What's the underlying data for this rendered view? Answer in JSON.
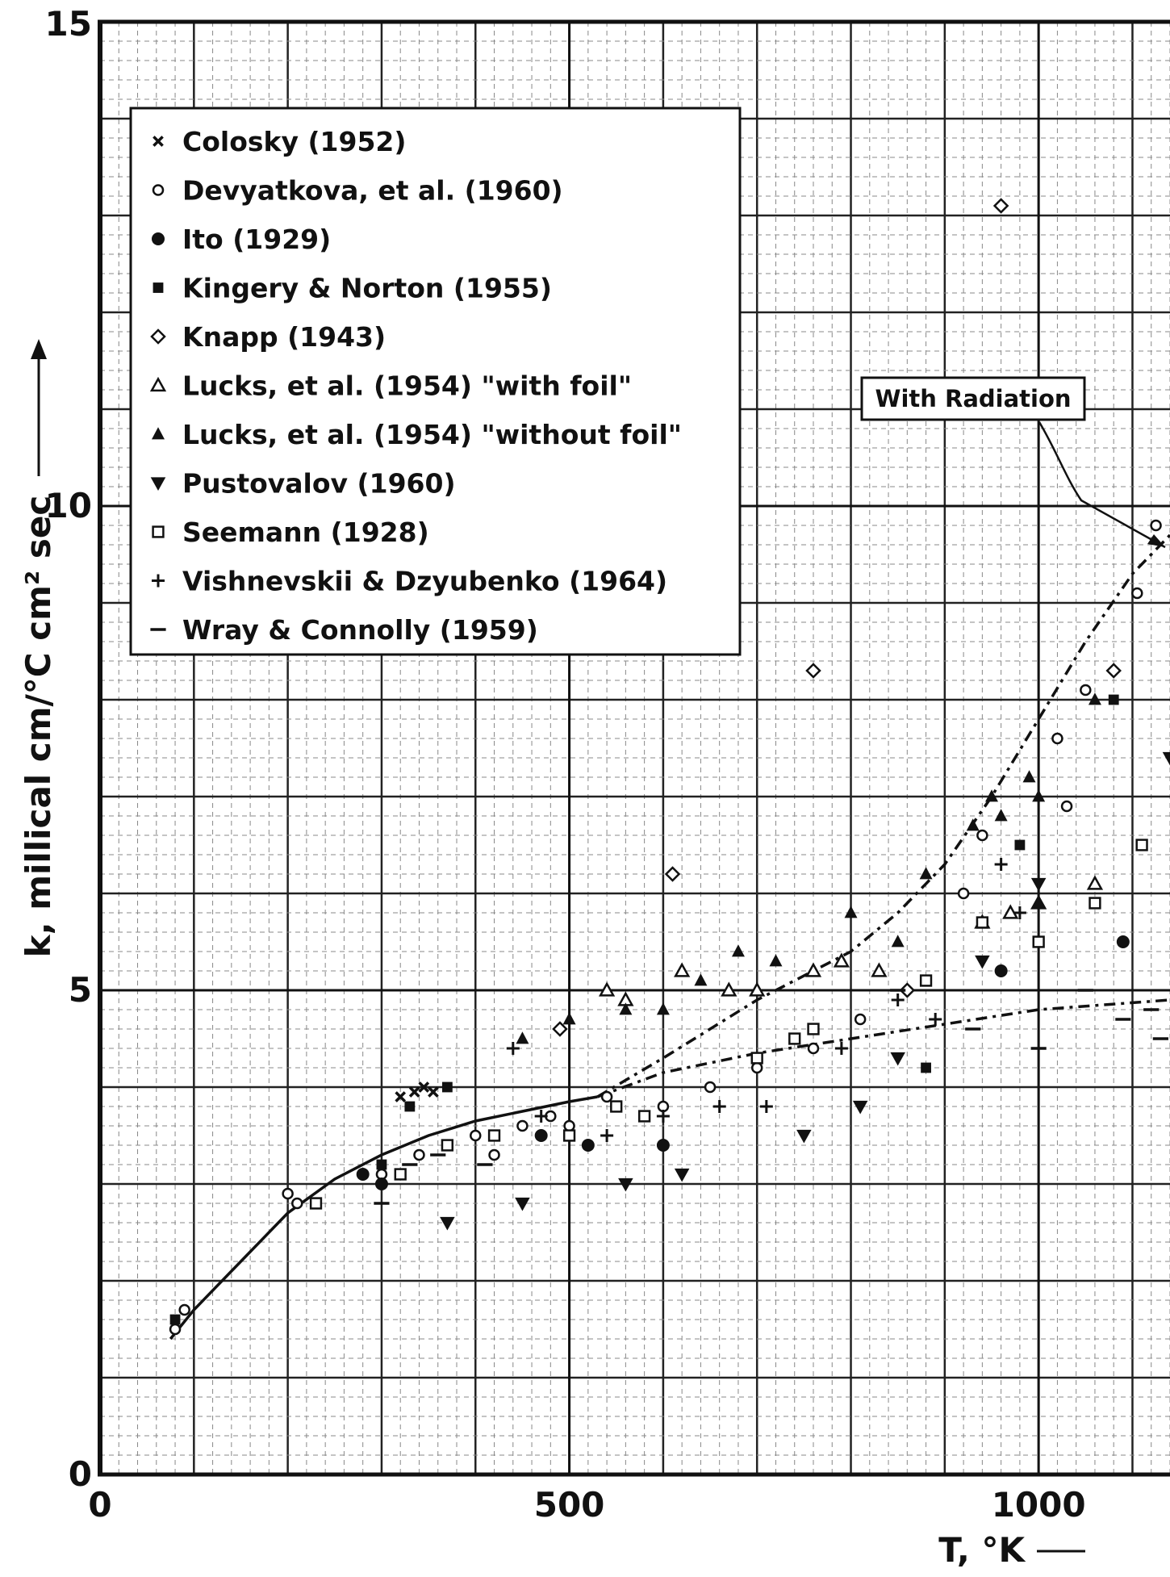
{
  "chart_data": {
    "type": "scatter",
    "xlabel": "T, °K",
    "ylabel": "k, millical cm/°C cm² sec",
    "xlim": [
      0,
      1140
    ],
    "ylim": [
      0,
      15
    ],
    "xticks": [
      0,
      500,
      1000
    ],
    "yticks": [
      0,
      5,
      10,
      15
    ],
    "grid": true,
    "legend": "upper-left",
    "annotation": "With Radiation",
    "series": [
      {
        "name": "Colosky (1952)",
        "marker": "x",
        "color": "#111",
        "x": [
          320,
          335,
          345,
          355
        ],
        "values": [
          3.9,
          3.95,
          4.0,
          3.95
        ]
      },
      {
        "name": "Devyatkova, et al. (1960)",
        "marker": "o",
        "color": "#111",
        "x": [
          80,
          90,
          200,
          210,
          300,
          340,
          370,
          400,
          420,
          450,
          480,
          500,
          540,
          600,
          650,
          700,
          760,
          810,
          920,
          940,
          1020,
          1050,
          1105,
          1125,
          1030
        ],
        "values": [
          1.5,
          1.7,
          2.9,
          2.8,
          3.1,
          3.3,
          3.4,
          3.5,
          3.3,
          3.6,
          3.7,
          3.6,
          3.9,
          3.8,
          4.0,
          4.2,
          4.4,
          4.7,
          6.0,
          6.6,
          7.6,
          8.1,
          9.1,
          9.8,
          6.9
        ]
      },
      {
        "name": "Ito (1929)",
        "marker": "filled-circle",
        "color": "#111",
        "x": [
          280,
          300,
          470,
          520,
          600,
          960,
          1090
        ],
        "values": [
          3.1,
          3.0,
          3.5,
          3.4,
          3.4,
          5.2,
          5.5
        ]
      },
      {
        "name": "Kingery & Norton (1955)",
        "marker": "filled-square",
        "color": "#111",
        "x": [
          80,
          300,
          330,
          370,
          880,
          980,
          1080
        ],
        "values": [
          1.6,
          3.2,
          3.8,
          4.0,
          4.2,
          6.5,
          8.0
        ]
      },
      {
        "name": "Knapp (1943)",
        "marker": "diamond",
        "color": "#111",
        "x": [
          490,
          610,
          760,
          960,
          860,
          1080
        ],
        "values": [
          4.6,
          6.2,
          8.3,
          13.1,
          5.0,
          8.3
        ]
      },
      {
        "name": "Lucks, et al. (1954) \"with foil\"",
        "marker": "triangle",
        "color": "#111",
        "x": [
          540,
          560,
          620,
          670,
          700,
          760,
          790,
          830,
          940,
          970,
          1000,
          1060
        ],
        "values": [
          5.0,
          4.9,
          5.2,
          5.0,
          5.0,
          5.2,
          5.3,
          5.2,
          5.7,
          5.8,
          5.9,
          6.1
        ]
      },
      {
        "name": "Lucks, et al. (1954) \"without foil\"",
        "marker": "filled-triangle",
        "color": "#111",
        "x": [
          450,
          500,
          560,
          600,
          640,
          680,
          720,
          800,
          850,
          880,
          930,
          950,
          960,
          990,
          1000,
          1000,
          1060
        ],
        "values": [
          4.5,
          4.7,
          4.8,
          4.8,
          5.1,
          5.4,
          5.3,
          5.8,
          5.5,
          6.2,
          6.7,
          7.0,
          6.8,
          7.2,
          7.0,
          5.9,
          8.0
        ]
      },
      {
        "name": "Pustovalov (1960)",
        "marker": "triangle-down",
        "color": "#111",
        "x": [
          370,
          450,
          560,
          620,
          750,
          810,
          850,
          940,
          1000,
          1140
        ],
        "values": [
          2.6,
          2.8,
          3.0,
          3.1,
          3.5,
          3.8,
          4.3,
          5.3,
          6.1,
          7.4
        ]
      },
      {
        "name": "Seemann (1928)",
        "marker": "square",
        "color": "#111",
        "x": [
          230,
          320,
          370,
          420,
          500,
          550,
          580,
          700,
          740,
          880,
          940,
          1000,
          1060,
          1110,
          760
        ],
        "values": [
          2.8,
          3.1,
          3.4,
          3.5,
          3.5,
          3.8,
          3.7,
          4.3,
          4.5,
          5.1,
          5.7,
          5.5,
          5.9,
          6.5,
          4.6
        ]
      },
      {
        "name": "Vishnevskii & Dzyubenko (1964)",
        "marker": "plus",
        "color": "#111",
        "x": [
          440,
          470,
          540,
          600,
          660,
          710,
          790,
          850,
          890,
          960,
          980
        ],
        "values": [
          4.4,
          3.7,
          3.5,
          3.7,
          3.8,
          3.8,
          4.4,
          4.9,
          4.7,
          6.3,
          5.8
        ]
      },
      {
        "name": "Wray & Connolly (1959)",
        "marker": "dash",
        "color": "#111",
        "x": [
          300,
          330,
          360,
          410,
          850,
          930,
          1000,
          1050,
          1090,
          1120,
          1130
        ],
        "values": [
          2.8,
          3.2,
          3.3,
          3.2,
          5.0,
          4.6,
          4.4,
          5.0,
          4.7,
          4.8,
          4.5
        ]
      }
    ],
    "curves": [
      {
        "dash": false,
        "x": [
          75,
          100,
          150,
          200,
          250,
          300,
          350,
          400,
          450,
          500,
          530
        ],
        "values": [
          1.4,
          1.7,
          2.2,
          2.7,
          3.05,
          3.3,
          3.5,
          3.65,
          3.75,
          3.85,
          3.9
        ]
      },
      {
        "dash": true,
        "x": [
          530,
          600,
          700,
          760,
          800,
          850,
          900,
          950,
          1000,
          1050,
          1100,
          1140
        ],
        "values": [
          3.9,
          4.3,
          4.9,
          5.2,
          5.4,
          5.8,
          6.3,
          7.0,
          7.8,
          8.6,
          9.3,
          9.7
        ]
      },
      {
        "dash": true,
        "x": [
          530,
          600,
          700,
          800,
          900,
          1000,
          1140
        ],
        "values": [
          3.9,
          4.15,
          4.35,
          4.5,
          4.65,
          4.8,
          4.9
        ]
      }
    ]
  }
}
